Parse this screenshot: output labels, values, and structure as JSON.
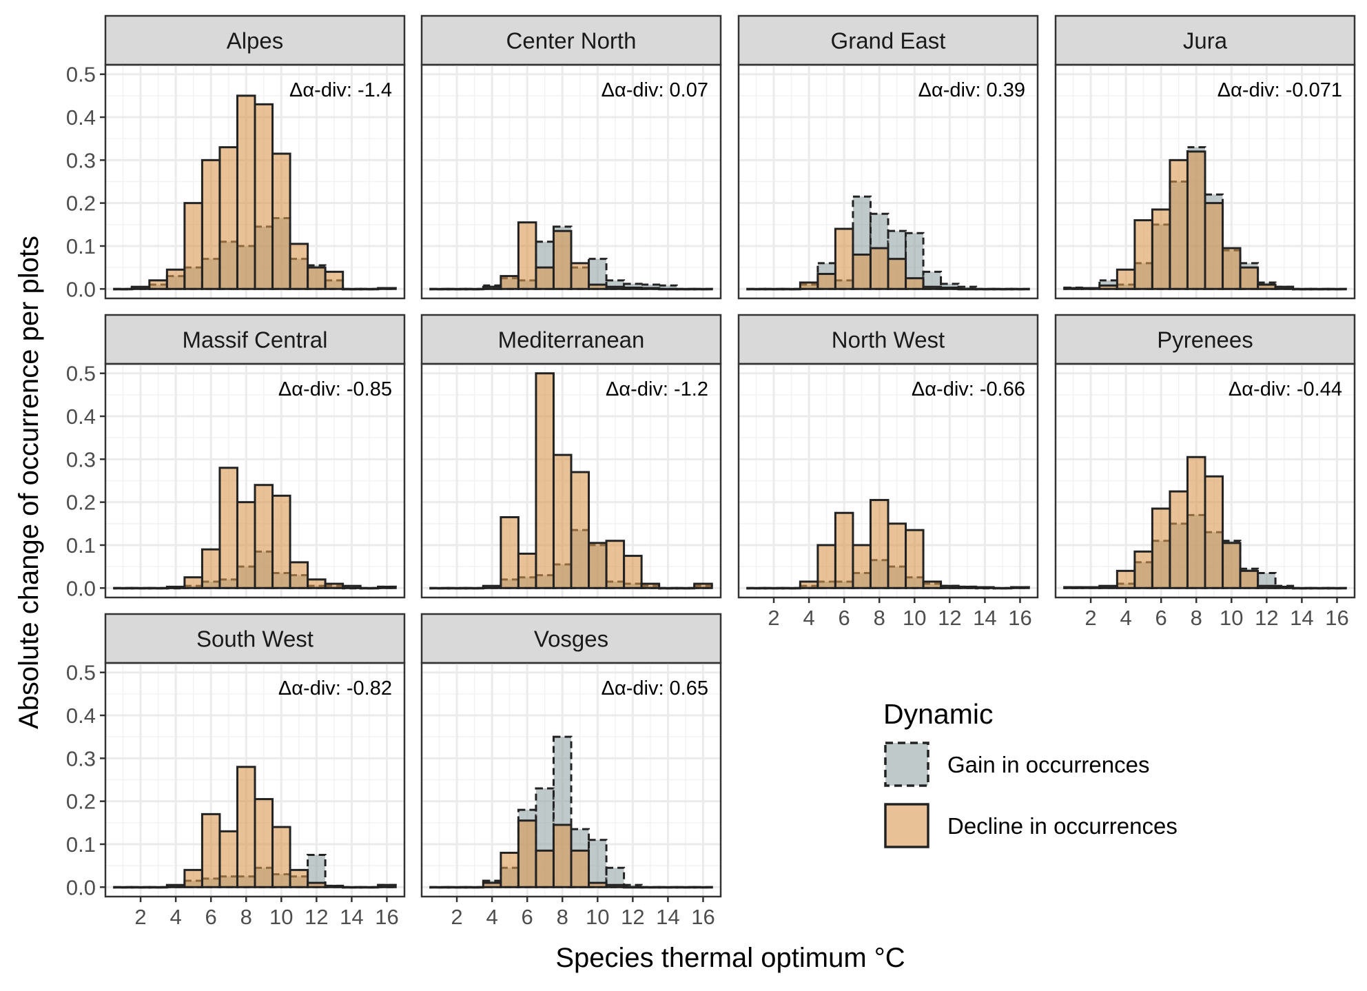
{
  "chart_data": {
    "type": "bar",
    "xlabel": "Species thermal optimum °C",
    "ylabel": "Absolute change of occurrence per plots",
    "ylim": [
      0,
      0.5
    ],
    "xlim": [
      0,
      17
    ],
    "bin_centers": [
      1,
      2,
      3,
      4,
      5,
      6,
      7,
      8,
      9,
      10,
      11,
      12,
      13,
      14,
      15,
      16
    ],
    "x_ticks": [
      "2",
      "4",
      "6",
      "8",
      "10",
      "12",
      "14",
      "16"
    ],
    "y_ticks": [
      "0.0",
      "0.1",
      "0.2",
      "0.3",
      "0.4",
      "0.5"
    ],
    "grid": true,
    "legend": {
      "title": "Dynamic",
      "position": "bottom-right",
      "entries": [
        {
          "label": "Gain in occurrences",
          "color": "#95a5a6",
          "line": "dashed"
        },
        {
          "label": "Decline in occurrences",
          "color": "#d99850",
          "line": "solid"
        }
      ]
    },
    "colors": {
      "gain": "#95a5a6",
      "decline": "#d99850",
      "outline": "#333333"
    },
    "panels": [
      {
        "name": "Alpes",
        "annotation": "Δα-div: -1.4",
        "decline": [
          0,
          0.005,
          0.02,
          0.045,
          0.2,
          0.3,
          0.33,
          0.45,
          0.43,
          0.315,
          0.105,
          0.05,
          0.04,
          0,
          0,
          0.002
        ],
        "gain": [
          0,
          0.003,
          0.01,
          0.03,
          0.05,
          0.07,
          0.11,
          0.1,
          0.145,
          0.165,
          0.07,
          0.055,
          0.02,
          0,
          0,
          0.002
        ]
      },
      {
        "name": "Center North",
        "annotation": "Δα-div: 0.07",
        "decline": [
          0,
          0,
          0,
          0.005,
          0.03,
          0.155,
          0.05,
          0.135,
          0.06,
          0.01,
          0.005,
          0.003,
          0.002,
          0,
          0,
          0
        ],
        "gain": [
          0,
          0,
          0,
          0.008,
          0.025,
          0.02,
          0.11,
          0.145,
          0.05,
          0.07,
          0.02,
          0.012,
          0.01,
          0.008,
          0,
          0
        ]
      },
      {
        "name": "Grand East",
        "annotation": "Δα-div: 0.39",
        "decline": [
          0,
          0,
          0,
          0.015,
          0.035,
          0.14,
          0.08,
          0.095,
          0.07,
          0.025,
          0.005,
          0.003,
          0,
          0,
          0,
          0
        ],
        "gain": [
          0,
          0,
          0,
          0.01,
          0.06,
          0.02,
          0.215,
          0.175,
          0.135,
          0.13,
          0.04,
          0.012,
          0.005,
          0,
          0,
          0
        ]
      },
      {
        "name": "Jura",
        "annotation": "Δα-div: -0.071",
        "decline": [
          0.002,
          0.002,
          0.008,
          0.045,
          0.16,
          0.185,
          0.3,
          0.32,
          0.2,
          0.095,
          0.05,
          0.01,
          0.005,
          0,
          0,
          0
        ],
        "gain": [
          0.003,
          0.001,
          0.02,
          0.01,
          0.06,
          0.15,
          0.25,
          0.33,
          0.22,
          0.09,
          0.06,
          0.015,
          0.005,
          0,
          0,
          0
        ]
      },
      {
        "name": "Massif Central",
        "annotation": "Δα-div: -0.85",
        "decline": [
          0,
          0,
          0,
          0.003,
          0.025,
          0.09,
          0.28,
          0.2,
          0.24,
          0.215,
          0.06,
          0.02,
          0.01,
          0.005,
          0,
          0.003
        ],
        "gain": [
          0,
          0,
          0,
          0,
          0.005,
          0.015,
          0.02,
          0.05,
          0.085,
          0.035,
          0.03,
          0.005,
          0.005,
          0,
          0,
          0.003
        ]
      },
      {
        "name": "Mediterranean",
        "annotation": "Δα-div: -1.2",
        "decline": [
          0,
          0,
          0,
          0.005,
          0.165,
          0.08,
          0.5,
          0.31,
          0.27,
          0.105,
          0.11,
          0.075,
          0.01,
          0,
          0,
          0.01
        ],
        "gain": [
          0,
          0,
          0,
          0.003,
          0.02,
          0.025,
          0.03,
          0.055,
          0.135,
          0.1,
          0.015,
          0.01,
          0.005,
          0,
          0,
          0.005
        ]
      },
      {
        "name": "North West",
        "annotation": "Δα-div: -0.66",
        "decline": [
          0,
          0,
          0,
          0.015,
          0.1,
          0.175,
          0.1,
          0.205,
          0.15,
          0.135,
          0.015,
          0.005,
          0.003,
          0.002,
          0,
          0.002
        ],
        "gain": [
          0,
          0,
          0,
          0.005,
          0.015,
          0.015,
          0.035,
          0.065,
          0.05,
          0.025,
          0.01,
          0.005,
          0.003,
          0,
          0,
          0.002
        ]
      },
      {
        "name": "Pyrenees",
        "annotation": "Δα-div: -0.44",
        "decline": [
          0.002,
          0.002,
          0.005,
          0.04,
          0.085,
          0.185,
          0.225,
          0.305,
          0.26,
          0.105,
          0.04,
          0.005,
          0.003,
          0,
          0,
          0
        ],
        "gain": [
          0.002,
          0.001,
          0.003,
          0.01,
          0.06,
          0.11,
          0.15,
          0.17,
          0.13,
          0.11,
          0.045,
          0.035,
          0.005,
          0,
          0,
          0
        ]
      },
      {
        "name": "South West",
        "annotation": "Δα-div: -0.82",
        "decline": [
          0,
          0,
          0,
          0.005,
          0.04,
          0.17,
          0.13,
          0.28,
          0.205,
          0.14,
          0.04,
          0.01,
          0.003,
          0,
          0,
          0.005
        ],
        "gain": [
          0,
          0,
          0,
          0.003,
          0.015,
          0.02,
          0.025,
          0.025,
          0.045,
          0.03,
          0.025,
          0.075,
          0.003,
          0,
          0,
          0.005
        ]
      },
      {
        "name": "Vosges",
        "annotation": "Δα-div: 0.65",
        "decline": [
          0,
          0,
          0,
          0.01,
          0.08,
          0.155,
          0.085,
          0.145,
          0.085,
          0.01,
          0.005,
          0,
          0,
          0,
          0,
          0
        ],
        "gain": [
          0,
          0,
          0,
          0.015,
          0.045,
          0.18,
          0.23,
          0.35,
          0.135,
          0.11,
          0.045,
          0.005,
          0,
          0,
          0,
          0
        ]
      }
    ]
  }
}
